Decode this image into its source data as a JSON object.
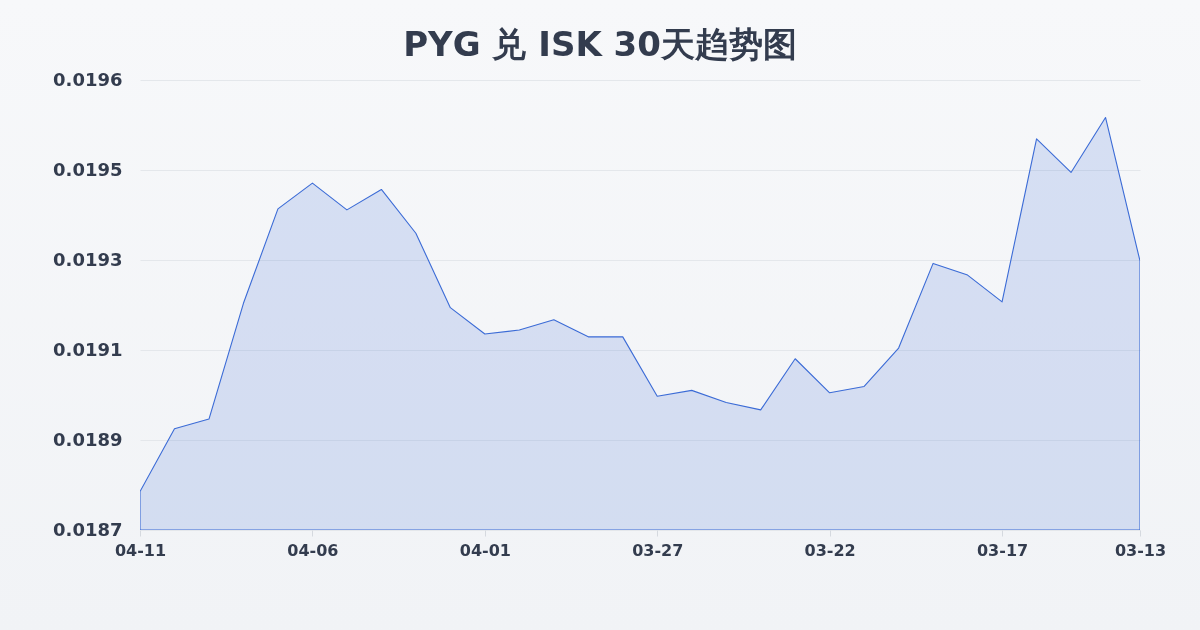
{
  "chart_data": {
    "type": "area",
    "title": "PYG 兑 ISK 30天趋势图",
    "categories": [
      "04-11",
      null,
      null,
      null,
      null,
      "04-06",
      null,
      null,
      null,
      null,
      "04-01",
      null,
      null,
      null,
      null,
      "03-27",
      null,
      null,
      null,
      null,
      "03-22",
      null,
      null,
      null,
      null,
      "03-17",
      null,
      null,
      null,
      "03-13"
    ],
    "series": [
      {
        "color": "#3b6bd6",
        "values": [
          0.018799,
          0.018928,
          0.018948,
          0.019186,
          0.01938,
          0.019433,
          0.019378,
          0.01942,
          0.01933,
          0.019177,
          0.019123,
          0.019131,
          0.019152,
          0.019117,
          0.019117,
          0.018995,
          0.019007,
          0.018982,
          0.018967,
          0.019072,
          0.019002,
          0.019015,
          0.019094,
          0.019268,
          0.019244,
          0.019189,
          0.019524,
          0.019455,
          0.019568,
          0.019273
        ]
      }
    ],
    "ylim": [
      0.01872,
      0.019645
    ],
    "yticks": [
      {
        "value": 0.01872,
        "label": "0.0187"
      },
      {
        "value": 0.018905,
        "label": "0.0189"
      },
      {
        "value": 0.01909,
        "label": "0.0191"
      },
      {
        "value": 0.019275,
        "label": "0.0193"
      },
      {
        "value": 0.01946,
        "label": "0.0195"
      },
      {
        "value": 0.019645,
        "label": "0.0196"
      }
    ],
    "grid": "y",
    "line_style": "solid"
  }
}
